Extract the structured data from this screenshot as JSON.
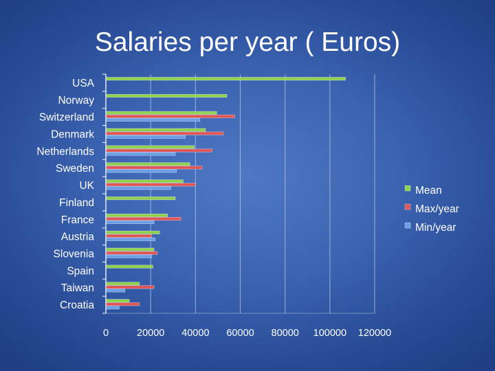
{
  "slide": {
    "title": "Salaries per year ( Euros)"
  },
  "chart_data": {
    "type": "bar",
    "orientation": "horizontal",
    "title": "Salaries per year ( Euros)",
    "categories": [
      "USA",
      "Norway",
      "Switzerland",
      "Denmark",
      "Netherlands",
      "Sweden",
      "UK",
      "Finland",
      "France",
      "Austria",
      "Slovenia",
      "Spain",
      "Taiwan",
      "Croatia"
    ],
    "series": [
      {
        "name": "Mean",
        "color": "#8fd14f",
        "values": [
          107000,
          54000,
          49500,
          44500,
          39500,
          37500,
          34500,
          31000,
          27500,
          24000,
          21500,
          21000,
          15000,
          10500
        ]
      },
      {
        "name": "Max/year",
        "color": "#e05555",
        "values": [
          null,
          null,
          57500,
          52500,
          47500,
          43000,
          40000,
          null,
          33500,
          20500,
          23000,
          null,
          21500,
          15000
        ]
      },
      {
        "name": "Min/year",
        "color": "#6a9ee6",
        "values": [
          null,
          null,
          42000,
          35500,
          31000,
          31500,
          29000,
          null,
          21500,
          22000,
          20500,
          null,
          8500,
          6000
        ]
      }
    ],
    "xlim": [
      0,
      120000
    ],
    "xticks": [
      0,
      20000,
      40000,
      60000,
      80000,
      100000,
      120000
    ],
    "grid": true,
    "legend": "right",
    "xlabel": "",
    "ylabel": ""
  }
}
